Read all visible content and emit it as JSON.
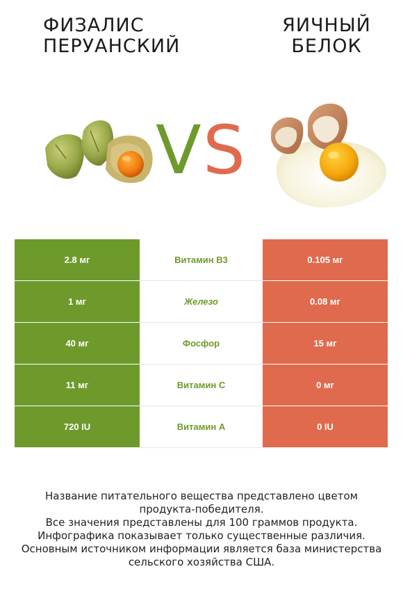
{
  "left_title": "Физалис перуанский",
  "right_title": "Яичный белок",
  "vs": {
    "v": "V",
    "s": "S"
  },
  "colors": {
    "winner_left": "#6e9a2c",
    "winner_right": "#e06a4e"
  },
  "rows": [
    {
      "left": "2.8 мг",
      "label": "Витамин B3",
      "right": "0.105 мг"
    },
    {
      "left": "1 мг",
      "label": "Железо",
      "right": "0.08 мг"
    },
    {
      "left": "40 мг",
      "label": "Фосфор",
      "right": "15 мг"
    },
    {
      "left": "11 мг",
      "label": "Витамин C",
      "right": "0 мг"
    },
    {
      "left": "720 IU",
      "label": "Витамин A",
      "right": "0 IU"
    }
  ],
  "footnote": {
    "line1": "Название питательного вещества представлено цветом",
    "line2": "продукта-победителя.",
    "line3": "Все значения представлены для 100 граммов продукта.",
    "line4": "Инфографика показывает только существенные различия.",
    "line5": "Основным источником информации является база министерства",
    "line6": "сельского хозяйства США."
  }
}
